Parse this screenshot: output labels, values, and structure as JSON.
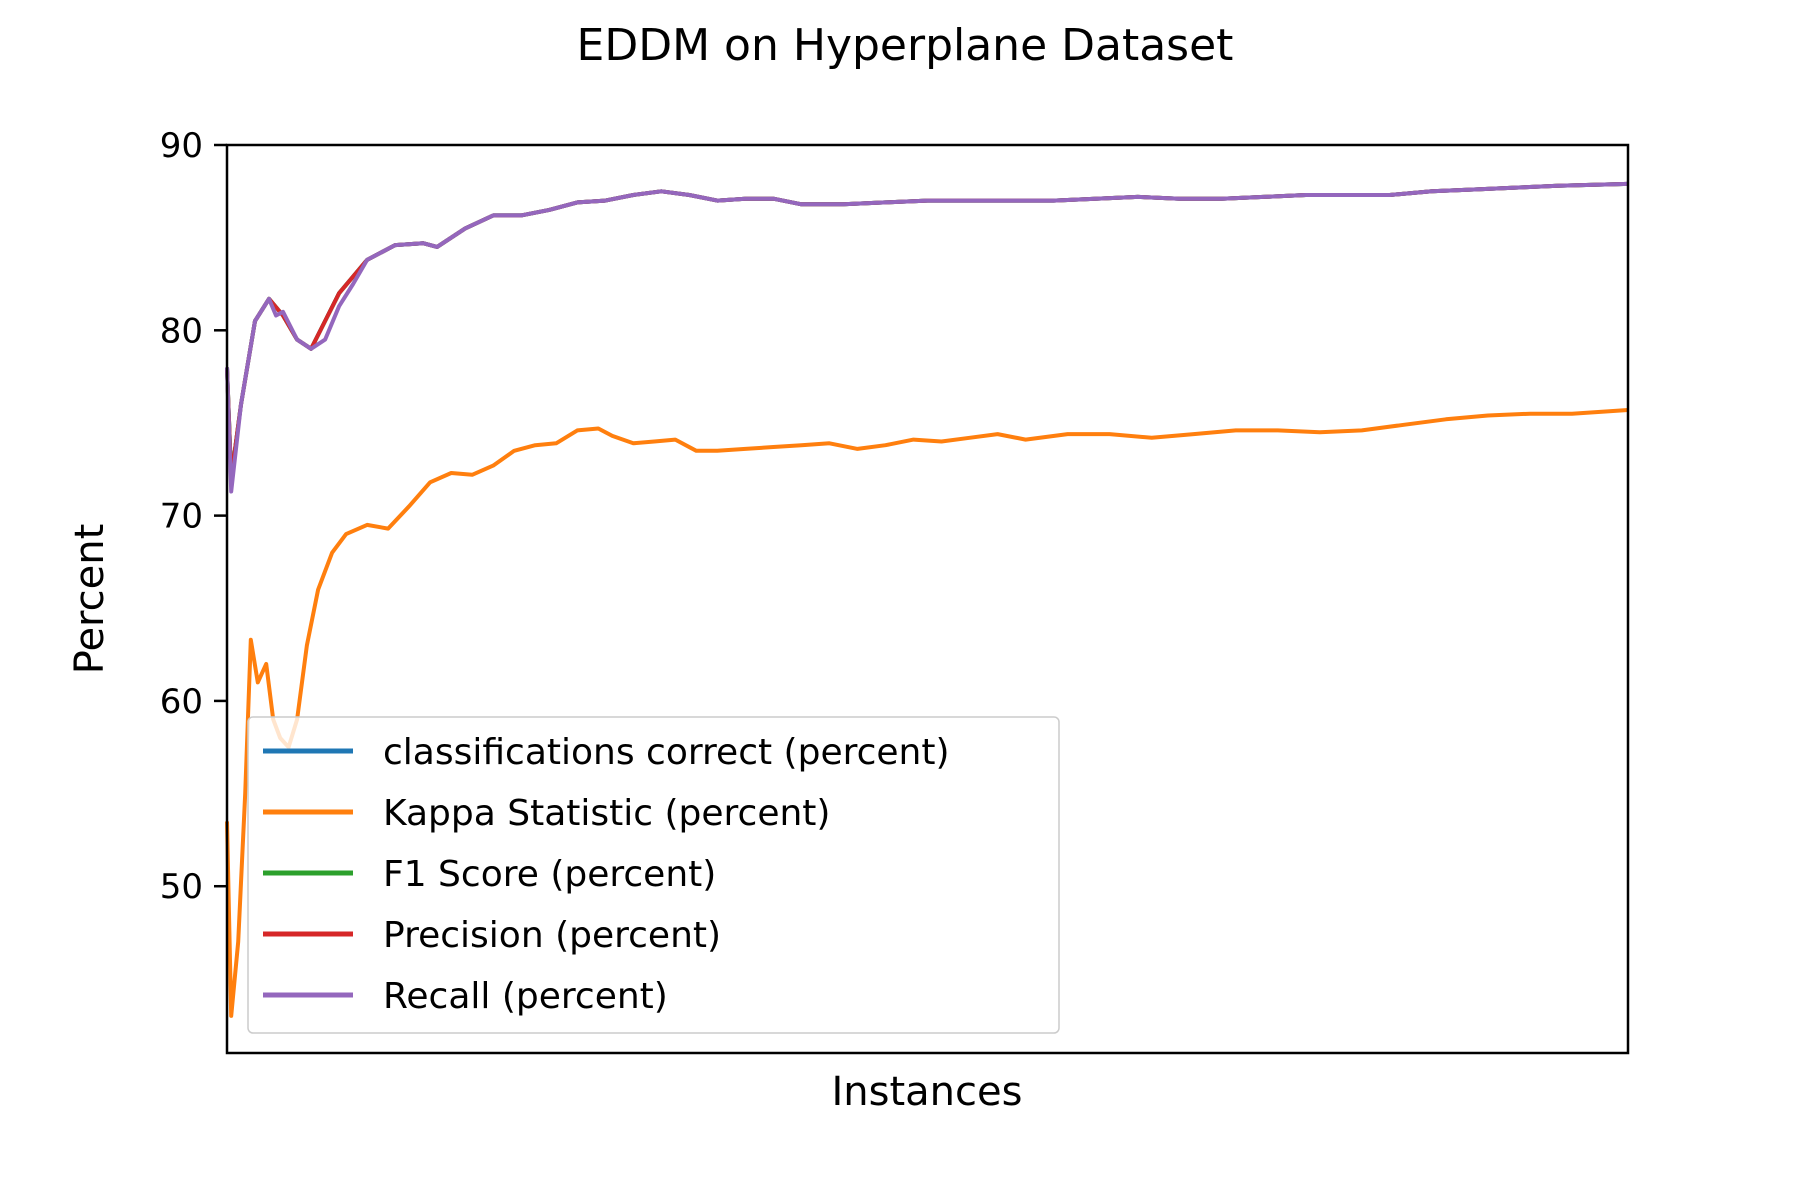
{
  "chart_data": {
    "type": "line",
    "title": "EDDM on Hyperplane Dataset",
    "xlabel": "Instances",
    "ylabel": "Percent",
    "ylim": [
      41,
      90
    ],
    "yticks": [
      50,
      60,
      70,
      80,
      90
    ],
    "xlim": [
      0,
      100
    ],
    "x_tick_labels_shown": false,
    "grid": false,
    "legend_position": "lower-left",
    "series": [
      {
        "name": "classifications correct (percent)",
        "color": "#1f77b4",
        "points": [
          [
            0,
            78.0
          ],
          [
            0.3,
            72.0
          ],
          [
            1,
            76
          ],
          [
            2,
            80.5
          ],
          [
            3,
            81.7
          ],
          [
            4,
            80.8
          ],
          [
            5,
            79.5
          ],
          [
            6,
            79.0
          ],
          [
            7,
            80.5
          ],
          [
            8,
            82.0
          ],
          [
            10,
            83.8
          ],
          [
            12,
            84.6
          ],
          [
            14,
            84.7
          ],
          [
            15,
            84.5
          ],
          [
            17,
            85.5
          ],
          [
            19,
            86.2
          ],
          [
            21,
            86.2
          ],
          [
            23,
            86.5
          ],
          [
            25,
            86.9
          ],
          [
            27,
            87.0
          ],
          [
            29,
            87.3
          ],
          [
            31,
            87.5
          ],
          [
            33,
            87.3
          ],
          [
            35,
            87.0
          ],
          [
            37,
            87.1
          ],
          [
            39,
            87.1
          ],
          [
            41,
            86.8
          ],
          [
            44,
            86.8
          ],
          [
            47,
            86.9
          ],
          [
            50,
            87.0
          ],
          [
            53,
            87.0
          ],
          [
            56,
            87.0
          ],
          [
            59,
            87.0
          ],
          [
            62,
            87.1
          ],
          [
            65,
            87.2
          ],
          [
            68,
            87.1
          ],
          [
            71,
            87.1
          ],
          [
            74,
            87.2
          ],
          [
            77,
            87.3
          ],
          [
            80,
            87.3
          ],
          [
            83,
            87.3
          ],
          [
            86,
            87.5
          ],
          [
            89,
            87.6
          ],
          [
            92,
            87.7
          ],
          [
            95,
            87.8
          ],
          [
            100,
            87.9
          ]
        ]
      },
      {
        "name": "Kappa Statistic (percent)",
        "color": "#ff7f0e",
        "points": [
          [
            0,
            53.5
          ],
          [
            0.3,
            43.0
          ],
          [
            0.8,
            47.0
          ],
          [
            1.3,
            55.0
          ],
          [
            1.7,
            63.3
          ],
          [
            2.2,
            61.0
          ],
          [
            2.8,
            62.0
          ],
          [
            3.3,
            59.0
          ],
          [
            3.8,
            58.0
          ],
          [
            4.4,
            57.5
          ],
          [
            5.0,
            59.0
          ],
          [
            5.7,
            63.0
          ],
          [
            6.5,
            66.0
          ],
          [
            7.5,
            68.0
          ],
          [
            8.5,
            69.0
          ],
          [
            10.0,
            69.5
          ],
          [
            11.5,
            69.3
          ],
          [
            13.0,
            70.5
          ],
          [
            14.5,
            71.8
          ],
          [
            16.0,
            72.3
          ],
          [
            17.5,
            72.2
          ],
          [
            19.0,
            72.7
          ],
          [
            20.5,
            73.5
          ],
          [
            22.0,
            73.8
          ],
          [
            23.5,
            73.9
          ],
          [
            25.0,
            74.6
          ],
          [
            26.5,
            74.7
          ],
          [
            27.5,
            74.3
          ],
          [
            29.0,
            73.9
          ],
          [
            30.5,
            74.0
          ],
          [
            32.0,
            74.1
          ],
          [
            33.5,
            73.5
          ],
          [
            35.0,
            73.5
          ],
          [
            37.0,
            73.6
          ],
          [
            39.0,
            73.7
          ],
          [
            41.0,
            73.8
          ],
          [
            43.0,
            73.9
          ],
          [
            45.0,
            73.6
          ],
          [
            47.0,
            73.8
          ],
          [
            49.0,
            74.1
          ],
          [
            51.0,
            74.0
          ],
          [
            53.0,
            74.2
          ],
          [
            55.0,
            74.4
          ],
          [
            57.0,
            74.1
          ],
          [
            60.0,
            74.4
          ],
          [
            63.0,
            74.4
          ],
          [
            66.0,
            74.2
          ],
          [
            69.0,
            74.4
          ],
          [
            72.0,
            74.6
          ],
          [
            75.0,
            74.6
          ],
          [
            78.0,
            74.5
          ],
          [
            81.0,
            74.6
          ],
          [
            84.0,
            74.9
          ],
          [
            87.0,
            75.2
          ],
          [
            90.0,
            75.4
          ],
          [
            93.0,
            75.5
          ],
          [
            96.0,
            75.5
          ],
          [
            100.0,
            75.7
          ]
        ]
      },
      {
        "name": "F1 Score (percent)",
        "color": "#2ca02c",
        "points": [
          [
            0,
            78.0
          ],
          [
            0.3,
            72.0
          ],
          [
            1,
            76
          ],
          [
            2,
            80.5
          ],
          [
            3,
            81.7
          ],
          [
            4,
            80.8
          ],
          [
            5,
            79.5
          ],
          [
            6,
            79.0
          ],
          [
            7,
            80.5
          ],
          [
            8,
            82.0
          ],
          [
            10,
            83.8
          ],
          [
            12,
            84.6
          ],
          [
            14,
            84.7
          ],
          [
            15,
            84.5
          ],
          [
            17,
            85.5
          ],
          [
            19,
            86.2
          ],
          [
            21,
            86.2
          ],
          [
            23,
            86.5
          ],
          [
            25,
            86.9
          ],
          [
            27,
            87.0
          ],
          [
            29,
            87.3
          ],
          [
            31,
            87.5
          ],
          [
            33,
            87.3
          ],
          [
            35,
            87.0
          ],
          [
            37,
            87.1
          ],
          [
            39,
            87.1
          ],
          [
            41,
            86.8
          ],
          [
            44,
            86.8
          ],
          [
            47,
            86.9
          ],
          [
            50,
            87.0
          ],
          [
            53,
            87.0
          ],
          [
            56,
            87.0
          ],
          [
            59,
            87.0
          ],
          [
            62,
            87.1
          ],
          [
            65,
            87.2
          ],
          [
            68,
            87.1
          ],
          [
            71,
            87.1
          ],
          [
            74,
            87.2
          ],
          [
            77,
            87.3
          ],
          [
            80,
            87.3
          ],
          [
            83,
            87.3
          ],
          [
            86,
            87.5
          ],
          [
            89,
            87.6
          ],
          [
            92,
            87.7
          ],
          [
            95,
            87.8
          ],
          [
            100,
            87.9
          ]
        ]
      },
      {
        "name": "Precision (percent)",
        "color": "#d62728",
        "points": [
          [
            0,
            78.0
          ],
          [
            0.3,
            72.0
          ],
          [
            1,
            76
          ],
          [
            2,
            80.5
          ],
          [
            3,
            81.7
          ],
          [
            4,
            80.8
          ],
          [
            5,
            79.5
          ],
          [
            6,
            79.0
          ],
          [
            7,
            80.5
          ],
          [
            8,
            82.0
          ],
          [
            10,
            83.8
          ],
          [
            12,
            84.6
          ],
          [
            14,
            84.7
          ],
          [
            15,
            84.5
          ],
          [
            17,
            85.5
          ],
          [
            19,
            86.2
          ],
          [
            21,
            86.2
          ],
          [
            23,
            86.5
          ],
          [
            25,
            86.9
          ],
          [
            27,
            87.0
          ],
          [
            29,
            87.3
          ],
          [
            31,
            87.5
          ],
          [
            33,
            87.3
          ],
          [
            35,
            87.0
          ],
          [
            37,
            87.1
          ],
          [
            39,
            87.1
          ],
          [
            41,
            86.8
          ],
          [
            44,
            86.8
          ],
          [
            47,
            86.9
          ],
          [
            50,
            87.0
          ],
          [
            53,
            87.0
          ],
          [
            56,
            87.0
          ],
          [
            59,
            87.0
          ],
          [
            62,
            87.1
          ],
          [
            65,
            87.2
          ],
          [
            68,
            87.1
          ],
          [
            71,
            87.1
          ],
          [
            74,
            87.2
          ],
          [
            77,
            87.3
          ],
          [
            80,
            87.3
          ],
          [
            83,
            87.3
          ],
          [
            86,
            87.5
          ],
          [
            89,
            87.6
          ],
          [
            92,
            87.7
          ],
          [
            95,
            87.8
          ],
          [
            100,
            87.9
          ]
        ]
      },
      {
        "name": "Recall (percent)",
        "color": "#9467bd",
        "points": [
          [
            0,
            78.0
          ],
          [
            0.3,
            71.3
          ],
          [
            1,
            76
          ],
          [
            2,
            80.5
          ],
          [
            3,
            81.7
          ],
          [
            3.5,
            80.8
          ],
          [
            4,
            81.0
          ],
          [
            5,
            79.5
          ],
          [
            6,
            79.0
          ],
          [
            7,
            79.5
          ],
          [
            8,
            81.3
          ],
          [
            9,
            82.5
          ],
          [
            10,
            83.8
          ],
          [
            12,
            84.6
          ],
          [
            14,
            84.7
          ],
          [
            15,
            84.5
          ],
          [
            17,
            85.5
          ],
          [
            19,
            86.2
          ],
          [
            21,
            86.2
          ],
          [
            23,
            86.5
          ],
          [
            25,
            86.9
          ],
          [
            27,
            87.0
          ],
          [
            29,
            87.3
          ],
          [
            31,
            87.5
          ],
          [
            33,
            87.3
          ],
          [
            35,
            87.0
          ],
          [
            37,
            87.1
          ],
          [
            39,
            87.1
          ],
          [
            41,
            86.8
          ],
          [
            44,
            86.8
          ],
          [
            47,
            86.9
          ],
          [
            50,
            87.0
          ],
          [
            53,
            87.0
          ],
          [
            56,
            87.0
          ],
          [
            59,
            87.0
          ],
          [
            62,
            87.1
          ],
          [
            65,
            87.2
          ],
          [
            68,
            87.1
          ],
          [
            71,
            87.1
          ],
          [
            74,
            87.2
          ],
          [
            77,
            87.3
          ],
          [
            80,
            87.3
          ],
          [
            83,
            87.3
          ],
          [
            86,
            87.5
          ],
          [
            89,
            87.6
          ],
          [
            92,
            87.7
          ],
          [
            95,
            87.8
          ],
          [
            100,
            87.9
          ]
        ]
      }
    ]
  }
}
